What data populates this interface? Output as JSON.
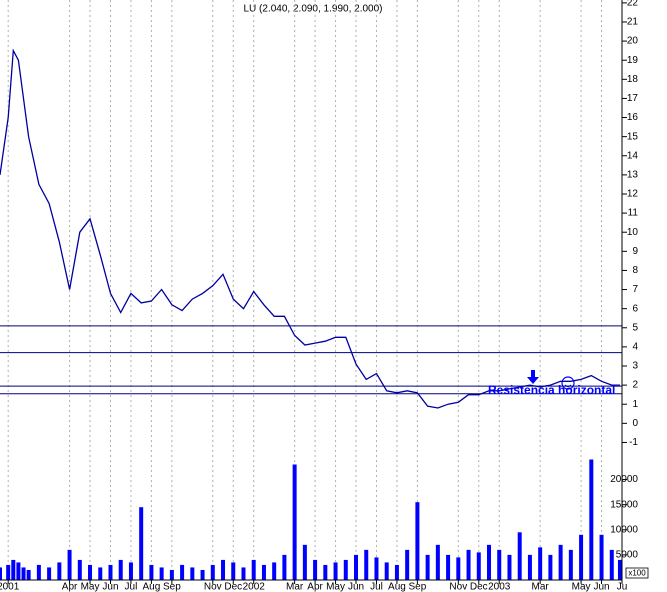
{
  "chart_data": [
    {
      "type": "line",
      "title": "LU (2.040, 2.090, 1.990, 2.000)",
      "color": "#0000a0",
      "x": [
        -0.4,
        0,
        0.25,
        0.5,
        0.75,
        1,
        1.5,
        2,
        2.5,
        3,
        3.5,
        4,
        4.5,
        5,
        5.5,
        6,
        6.5,
        7,
        7.5,
        8,
        8.5,
        9,
        9.5,
        10,
        10.5,
        11,
        11.5,
        12,
        12.5,
        13,
        13.5,
        14,
        14.5,
        15,
        15.5,
        16,
        16.5,
        17,
        17.5,
        18,
        18.5,
        19,
        19.5,
        20,
        20.5,
        21,
        21.5,
        22,
        22.5,
        23,
        23.5,
        24,
        24.5,
        25,
        25.5,
        26,
        26.5,
        27,
        27.5,
        28,
        28.5,
        29,
        29.5,
        29.9
      ],
      "values": [
        13,
        16,
        19.5,
        19,
        17,
        15,
        12.5,
        11.5,
        9.5,
        7,
        10,
        10.7,
        8.8,
        6.8,
        5.8,
        6.8,
        6.3,
        6.4,
        7,
        6.2,
        5.9,
        6.5,
        6.8,
        7.2,
        7.8,
        6.5,
        6,
        6.9,
        6.2,
        5.6,
        5.6,
        4.6,
        4.1,
        4.2,
        4.3,
        4.5,
        4.5,
        3.1,
        2.3,
        2.6,
        1.7,
        1.6,
        1.7,
        1.6,
        0.9,
        0.8,
        1,
        1.1,
        1.5,
        1.5,
        1.7,
        1.7,
        1.8,
        1.9,
        2,
        1.9,
        2,
        2.2,
        2.2,
        2.3,
        2.5,
        2.2,
        2,
        2
      ],
      "xlim": [
        -0.4,
        30.0
      ],
      "ylim": [
        -1.5,
        22.15
      ],
      "yticks": [
        -1,
        0,
        1,
        2,
        3,
        4,
        5,
        6,
        7,
        8,
        9,
        10,
        11,
        12,
        13,
        14,
        15,
        16,
        17,
        18,
        19,
        20,
        21,
        22
      ],
      "hlines": [
        5.1,
        3.7,
        1.95,
        1.55
      ],
      "hline_color": "#000080",
      "annotation": "Resistencia horizontal"
    },
    {
      "type": "bar",
      "color": "#0000ff",
      "volume_unit": "x100",
      "x": [
        -0.4,
        0,
        0.25,
        0.5,
        0.75,
        1,
        1.5,
        2,
        2.5,
        3,
        3.5,
        4,
        4.5,
        5,
        5.5,
        6,
        6.5,
        7,
        7.5,
        8,
        8.5,
        9,
        9.5,
        10,
        10.5,
        11,
        11.5,
        12,
        12.5,
        13,
        13.5,
        14,
        14.5,
        15,
        15.5,
        16,
        16.5,
        17,
        17.5,
        18,
        18.5,
        19,
        19.5,
        20,
        20.5,
        21,
        21.5,
        22,
        22.5,
        23,
        23.5,
        24,
        24.5,
        25,
        25.5,
        26,
        26.5,
        27,
        27.5,
        28,
        28.5,
        29,
        29.5,
        29.9
      ],
      "values": [
        2500,
        3000,
        4000,
        3500,
        2500,
        2000,
        3000,
        2500,
        3500,
        6000,
        4000,
        3000,
        2500,
        3000,
        4000,
        3500,
        14500,
        3000,
        2500,
        2000,
        3000,
        2500,
        2000,
        3000,
        4000,
        3500,
        2500,
        4000,
        3000,
        3500,
        5000,
        23000,
        7000,
        4000,
        3000,
        3500,
        4000,
        5000,
        6000,
        4500,
        3500,
        3000,
        6000,
        15500,
        5000,
        7000,
        5000,
        4500,
        6000,
        5500,
        7000,
        6000,
        5000,
        9500,
        5000,
        6500,
        5000,
        7000,
        6000,
        9000,
        24000,
        9000,
        6000,
        4000
      ],
      "xlim": [
        -0.4,
        30.0
      ],
      "ylim": [
        0,
        23500
      ],
      "yticks": [
        5000,
        10000,
        15000,
        20000
      ],
      "xticks": [
        {
          "value": 0,
          "label": "2001"
        },
        {
          "value": 3,
          "label": "Apr"
        },
        {
          "value": 4,
          "label": "May"
        },
        {
          "value": 5,
          "label": "Jun"
        },
        {
          "value": 6,
          "label": "Jul"
        },
        {
          "value": 7,
          "label": "Aug"
        },
        {
          "value": 8,
          "label": "Sep"
        },
        {
          "value": 10,
          "label": "Nov"
        },
        {
          "value": 11,
          "label": "Dec"
        },
        {
          "value": 12,
          "label": "2002"
        },
        {
          "value": 14,
          "label": "Mar"
        },
        {
          "value": 15,
          "label": "Apr"
        },
        {
          "value": 16,
          "label": "May"
        },
        {
          "value": 17,
          "label": "Jun"
        },
        {
          "value": 18,
          "label": "Jul"
        },
        {
          "value": 19,
          "label": "Aug"
        },
        {
          "value": 20,
          "label": "Sep"
        },
        {
          "value": 22,
          "label": "Nov"
        },
        {
          "value": 23,
          "label": "Dec"
        },
        {
          "value": 24,
          "label": "2003"
        },
        {
          "value": 26,
          "label": "Mar"
        },
        {
          "value": 28,
          "label": "May"
        },
        {
          "value": 29,
          "label": "Jun"
        },
        {
          "value": 30,
          "label": "Ju"
        }
      ]
    }
  ]
}
